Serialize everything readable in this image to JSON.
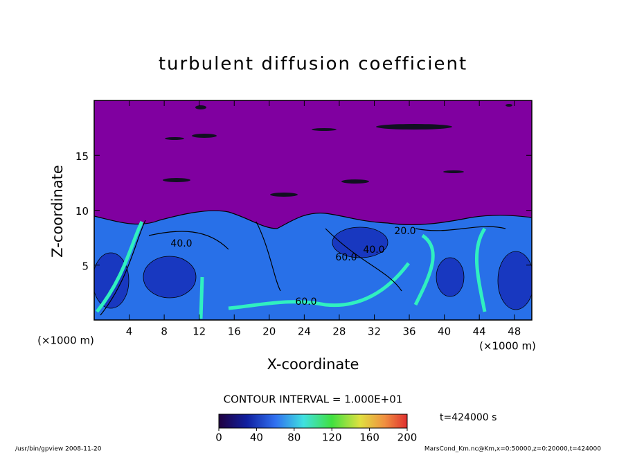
{
  "chart_data": {
    "type": "contour",
    "title": "turbulent diffusion coefficient",
    "x_label": "X-coordinate",
    "y_label": "Z-coordinate",
    "x_unit": "(×1000 m)",
    "y_unit": "(×1000 m)",
    "xlim": [
      0,
      50
    ],
    "xticks": [
      4,
      8,
      12,
      16,
      20,
      24,
      28,
      32,
      36,
      40,
      44,
      48
    ],
    "ylim": [
      0,
      20
    ],
    "yticks": [
      5,
      10,
      15
    ],
    "contour_labels": [
      "40.0",
      "40.0",
      "60.0",
      "60.0",
      "20.0"
    ],
    "contour_interval": "CONTOUR INTERVAL = 1.000E+01",
    "colorbar": {
      "lim": [
        0,
        200
      ],
      "ticks": [
        0,
        40,
        80,
        120,
        160,
        200
      ]
    },
    "time_label": "t=424000 s",
    "footer_left": "/usr/bin/gpview   2008-11-20",
    "footer_right": "MarsCond_Km.nc@Km,x=0:50000,z=0:20000,t=424000"
  }
}
